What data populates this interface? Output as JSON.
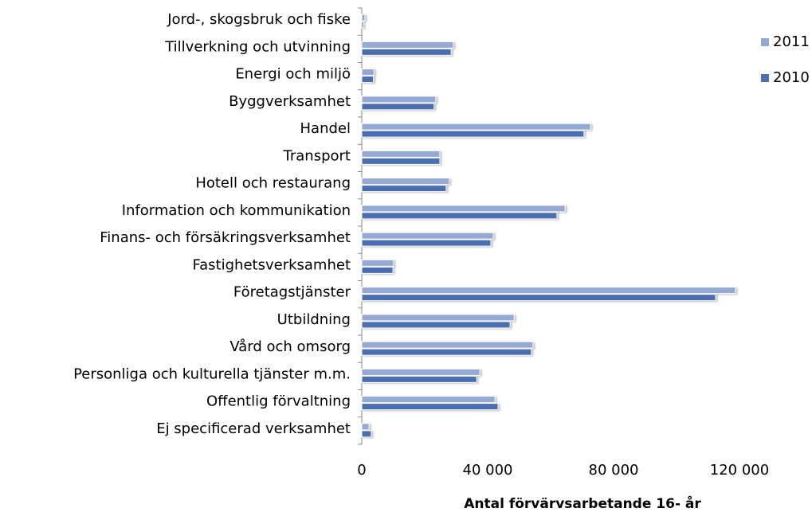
{
  "chart_data": {
    "type": "barh",
    "x_label": "Antal förvärvsarbetande 16- år",
    "categories": [
      "Jord-, skogsbruk och fiske",
      "Tillverkning och utvinning",
      "Energi och miljö",
      "Byggverksamhet",
      "Handel",
      "Transport",
      "Hotell och restaurang",
      "Information och kommunikation",
      "Finans- och försäkringsverksamhet",
      "Fastighetsverksamhet",
      "Företagstjänster",
      "Utbildning",
      "Vård och omsorg",
      "Personliga och kulturella tjänster m.m.",
      "Offentlig förvaltning",
      "Ej specificerad verksamhet"
    ],
    "series": [
      {
        "name": "2011",
        "color": "#95a9d4",
        "values": [
          1000,
          29100,
          3900,
          23500,
          72700,
          24800,
          27800,
          64600,
          41800,
          10100,
          118700,
          48400,
          54400,
          37500,
          42300,
          2300
        ]
      },
      {
        "name": "2010",
        "color": "#4a6eb0",
        "values": [
          500,
          28400,
          3700,
          23000,
          70600,
          24800,
          26800,
          62000,
          41000,
          9900,
          112400,
          47100,
          53900,
          36500,
          43300,
          3000
        ]
      }
    ],
    "xlim": [
      0,
      140000
    ],
    "xticks": [
      0,
      {
        "value": 40000,
        "label": "40 000"
      },
      {
        "value": 80000,
        "label": "80 000"
      },
      {
        "value": 120000,
        "label": "120 000"
      }
    ],
    "legend": "upper right"
  }
}
